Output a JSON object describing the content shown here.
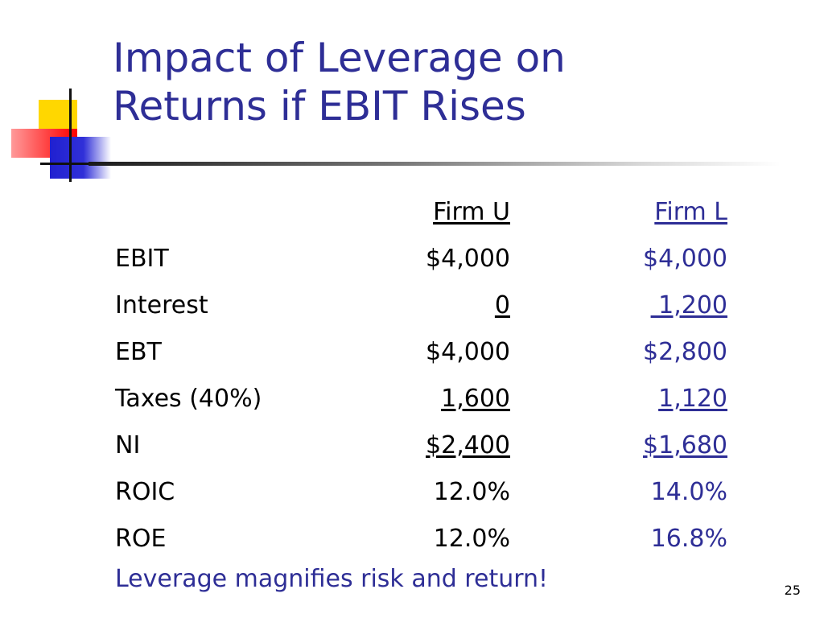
{
  "slide": {
    "title_line1": "Impact of Leverage on",
    "title_line2": "Returns if EBIT Rises",
    "table": {
      "headers": [
        "",
        "Firm U",
        "Firm L"
      ],
      "rows": [
        {
          "label": "EBIT",
          "firm_u": "$4,000",
          "firm_l": "$4,000"
        },
        {
          "label": "Interest",
          "firm_u": "0",
          "firm_l": " 1,200"
        },
        {
          "label": "EBT",
          "firm_u": "$4,000",
          "firm_l": "$2,800"
        },
        {
          "label": "Taxes (40%)",
          "firm_u": "1,600",
          "firm_l": "1,120"
        },
        {
          "label": "NI",
          "firm_u": "$2,400",
          "firm_l": "$1,680"
        },
        {
          "label": "ROIC",
          "firm_u": "12.0%",
          "firm_l": "14.0%"
        },
        {
          "label": "ROE",
          "firm_u": "12.0%",
          "firm_l": "16.8%"
        }
      ]
    },
    "note": "Leverage magnifies risk and return!",
    "page_number": "25"
  },
  "colors": {
    "title": "#2e2e96",
    "firm_l_text": "#2e2e96",
    "body_text": "#000000",
    "accent_yellow": "#ffd700",
    "accent_red": "#ff2a2a",
    "accent_blue": "#2020d0"
  }
}
